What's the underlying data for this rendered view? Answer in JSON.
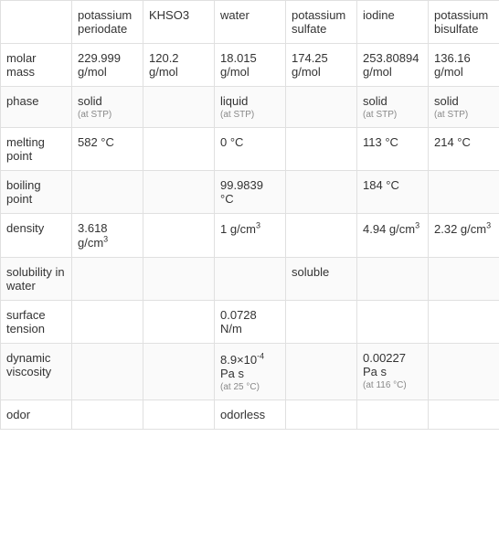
{
  "table": {
    "background_color": "#ffffff",
    "border_color": "#e0e0e0",
    "text_color": "#333333",
    "note_color": "#888888",
    "font_size": 13,
    "note_font_size": 10,
    "columns": [
      "",
      "potassium periodate",
      "KHSO3",
      "water",
      "potassium sulfate",
      "iodine",
      "potassium bisulfate"
    ],
    "rows": [
      {
        "label": "molar mass",
        "cells": [
          {
            "text": "229.999 g/mol"
          },
          {
            "text": "120.2 g/mol"
          },
          {
            "text": "18.015 g/mol"
          },
          {
            "text": "174.25 g/mol"
          },
          {
            "text": "253.80894 g/mol"
          },
          {
            "text": "136.16 g/mol"
          }
        ]
      },
      {
        "label": "phase",
        "cells": [
          {
            "text": "solid",
            "note": "(at STP)"
          },
          {
            "text": ""
          },
          {
            "text": "liquid",
            "note": "(at STP)"
          },
          {
            "text": ""
          },
          {
            "text": "solid",
            "note": "(at STP)"
          },
          {
            "text": "solid",
            "note": "(at STP)"
          }
        ]
      },
      {
        "label": "melting point",
        "cells": [
          {
            "text": "582 °C"
          },
          {
            "text": ""
          },
          {
            "text": "0 °C"
          },
          {
            "text": ""
          },
          {
            "text": "113 °C"
          },
          {
            "text": "214 °C"
          }
        ]
      },
      {
        "label": "boiling point",
        "cells": [
          {
            "text": ""
          },
          {
            "text": ""
          },
          {
            "text": "99.9839 °C"
          },
          {
            "text": ""
          },
          {
            "text": "184 °C"
          },
          {
            "text": ""
          }
        ]
      },
      {
        "label": "density",
        "cells": [
          {
            "html": "3.618 g/cm<sup>3</sup>"
          },
          {
            "text": ""
          },
          {
            "html": "1 g/cm<sup>3</sup>"
          },
          {
            "text": ""
          },
          {
            "html": "4.94 g/cm<sup>3</sup>"
          },
          {
            "html": "2.32 g/cm<sup>3</sup>"
          }
        ]
      },
      {
        "label": "solubility in water",
        "cells": [
          {
            "text": ""
          },
          {
            "text": ""
          },
          {
            "text": ""
          },
          {
            "text": "soluble"
          },
          {
            "text": ""
          },
          {
            "text": ""
          }
        ]
      },
      {
        "label": "surface tension",
        "cells": [
          {
            "text": ""
          },
          {
            "text": ""
          },
          {
            "text": "0.0728 N/m"
          },
          {
            "text": ""
          },
          {
            "text": ""
          },
          {
            "text": ""
          }
        ]
      },
      {
        "label": "dynamic viscosity",
        "cells": [
          {
            "text": ""
          },
          {
            "text": ""
          },
          {
            "html": "8.9×10<sup>-4</sup> Pa s",
            "note": "(at 25 °C)"
          },
          {
            "text": ""
          },
          {
            "text": "0.00227 Pa s",
            "note": "(at 116 °C)"
          },
          {
            "text": ""
          }
        ]
      },
      {
        "label": "odor",
        "cells": [
          {
            "text": ""
          },
          {
            "text": ""
          },
          {
            "text": "odorless"
          },
          {
            "text": ""
          },
          {
            "text": ""
          },
          {
            "text": ""
          }
        ]
      }
    ]
  }
}
